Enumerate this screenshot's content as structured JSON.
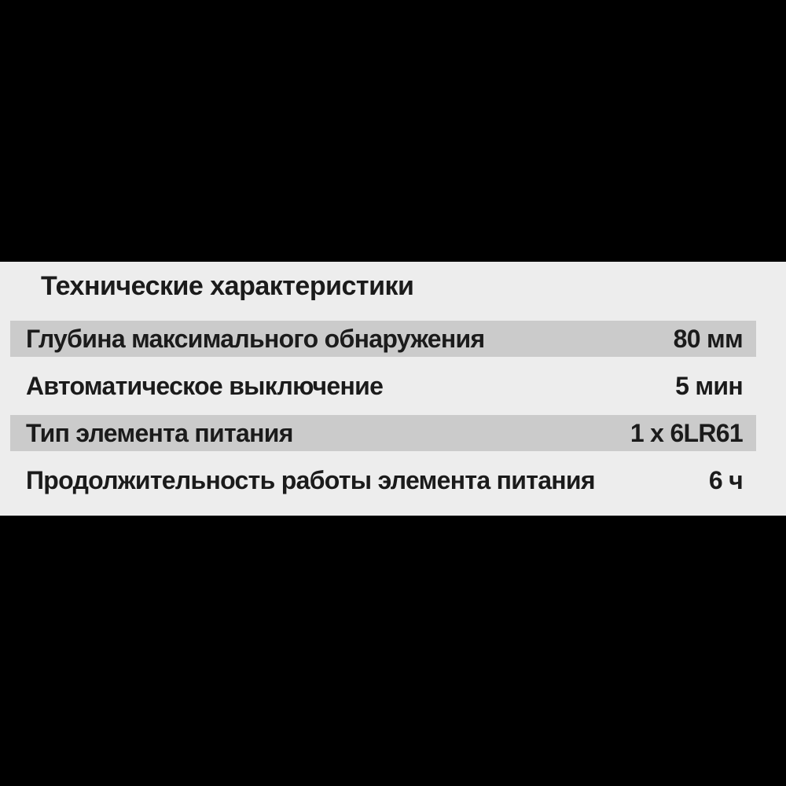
{
  "colors": {
    "page_background": "#000000",
    "panel_background": "#ededed",
    "stripe": "#cbcbcb",
    "text": "#1b1b1b"
  },
  "panel": {
    "title": "Технические характеристики",
    "rows": [
      {
        "label": "Глубина максимального обнаружения",
        "value": "80 мм",
        "striped": true
      },
      {
        "label": "Автоматическое выключение",
        "value": "5 мин",
        "striped": false
      },
      {
        "label": "Тип элемента питания",
        "value": "1 x 6LR61",
        "striped": true
      },
      {
        "label": "Продолжительность работы элемента питания",
        "value": "6 ч",
        "striped": false
      }
    ]
  }
}
